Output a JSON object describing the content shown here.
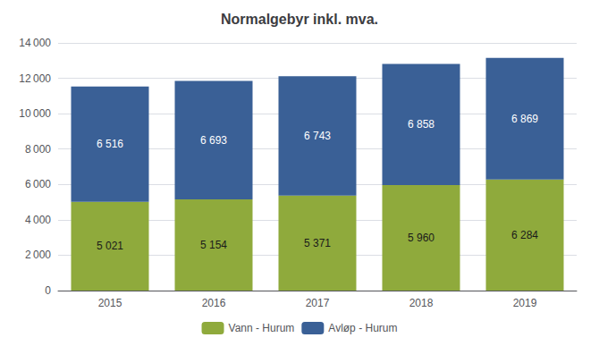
{
  "chart_data": {
    "type": "bar",
    "title": "Normalgebyr inkl. mva.",
    "categories": [
      "2015",
      "2016",
      "2017",
      "2018",
      "2019"
    ],
    "series": [
      {
        "name": "Vann - Hurum",
        "color": "#8faa3c",
        "values": [
          5021,
          5154,
          5371,
          5960,
          6284
        ],
        "value_labels": [
          "5 021",
          "5 154",
          "5 371",
          "5 960",
          "6 284"
        ]
      },
      {
        "name": "Avløp - Hurum",
        "color": "#3a6096",
        "values": [
          6516,
          6693,
          6743,
          6858,
          6869
        ],
        "value_labels": [
          "6 516",
          "6 693",
          "6 743",
          "6 858",
          "6 869"
        ]
      }
    ],
    "stacked": true,
    "data_labels": true,
    "ylim": [
      0,
      14000
    ],
    "yticks": [
      0,
      {
        "value": 2000,
        "label": "2 000"
      },
      {
        "value": 4000,
        "label": "4 000"
      },
      {
        "value": 6000,
        "label": "6 000"
      },
      {
        "value": 8000,
        "label": "8 000"
      },
      {
        "value": 10000,
        "label": "10 000"
      },
      {
        "value": 12000,
        "label": "12 000"
      },
      {
        "value": 14000,
        "label": "14 000"
      }
    ],
    "grid": true,
    "legend": "bottom"
  }
}
